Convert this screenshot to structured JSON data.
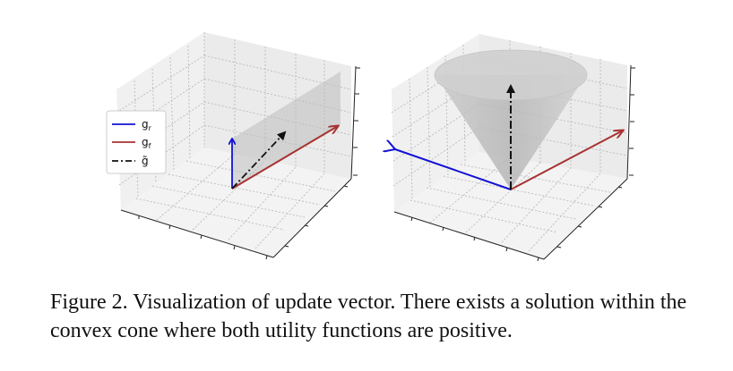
{
  "figure": {
    "legend": [
      {
        "label": "g_r",
        "base": "g",
        "sub": "r",
        "color": "#1212d6",
        "style": "solid"
      },
      {
        "label": "g_f",
        "base": "g",
        "sub": "f",
        "color": "#a83232",
        "style": "solid"
      },
      {
        "label": "g̃",
        "base": "g̃",
        "sub": "",
        "color": "#111111",
        "style": "dashdot"
      }
    ]
  },
  "caption": {
    "text": "Figure 2.  Visualization of update vector.  There exists a solution within the convex cone where both utility functions are positive."
  }
}
